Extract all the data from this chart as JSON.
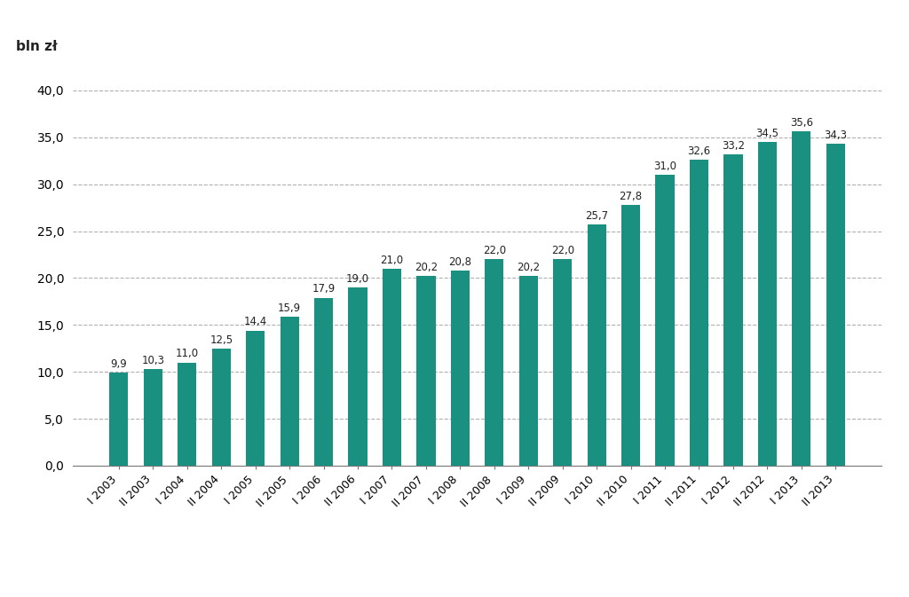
{
  "categories": [
    "I 2003",
    "II 2003",
    "I 2004",
    "II 2004",
    "I 2005",
    "II 2005",
    "I 2006",
    "II 2006",
    "I 2007",
    "II 2007",
    "I 2008",
    "II 2008",
    "I 2009",
    "II 2009",
    "I 2010",
    "II 2010",
    "I 2011",
    "II 2011",
    "I 2012",
    "II 2012",
    "I 2013",
    "II 2013"
  ],
  "values": [
    9.9,
    10.3,
    11.0,
    12.5,
    14.4,
    15.9,
    17.9,
    19.0,
    21.0,
    20.2,
    20.8,
    22.0,
    20.2,
    22.0,
    25.7,
    27.8,
    31.0,
    32.6,
    33.2,
    34.5,
    35.6,
    34.3
  ],
  "bar_color": "#1a9080",
  "ylabel_text": "bln zł",
  "ylim": [
    0,
    42
  ],
  "yticks": [
    0.0,
    5.0,
    10.0,
    15.0,
    20.0,
    25.0,
    30.0,
    35.0,
    40.0
  ],
  "ytick_labels": [
    "0,0",
    "5,0",
    "10,0",
    "15,0",
    "20,0",
    "25,0",
    "30,0",
    "35,0",
    "40,0"
  ],
  "background_color": "#ffffff",
  "grid_color": "#b0b0b0",
  "bar_width": 0.55,
  "label_fontsize": 8.5,
  "axis_label_fontsize": 11,
  "ytick_fontsize": 10,
  "xtick_fontsize": 9
}
